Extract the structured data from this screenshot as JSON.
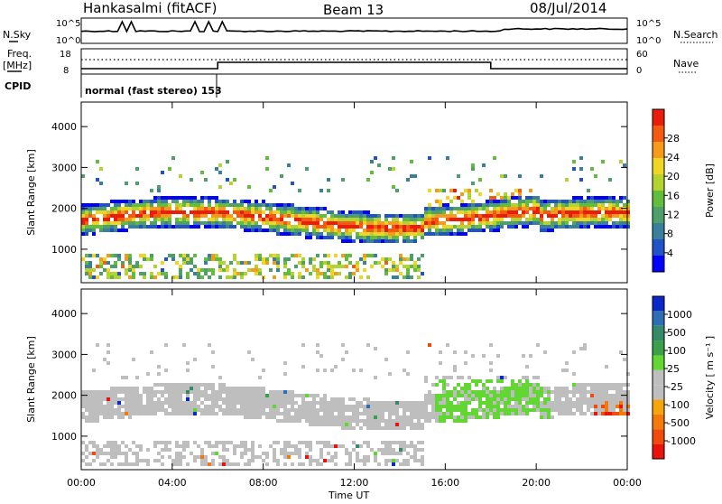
{
  "header": {
    "station": "Hankasalmi (fitACF)",
    "beam": "Beam 13",
    "date": "08/Jul/2014"
  },
  "panels": {
    "sky": {
      "left_label": "N.Sky",
      "right_label": "N.Search",
      "left_ticks": [
        "10^5",
        "10^0"
      ],
      "right_ticks": [
        "10^5",
        "10^0"
      ]
    },
    "freq": {
      "left_label_1": "Freq.",
      "left_label_2": "[MHz]",
      "right_label": "Nave",
      "left_ticks": [
        "18",
        "8"
      ],
      "right_ticks": [
        "60",
        "0"
      ]
    },
    "cpid": {
      "label": "CPID",
      "text": "normal (fast stereo) 153"
    }
  },
  "chart_data": [
    {
      "type": "heatmap",
      "title": "",
      "ylabel": "Slant Range [km]",
      "xlabel": "",
      "x_ticks": [
        "00:00",
        "04:00",
        "08:00",
        "12:00",
        "16:00",
        "20:00",
        "00:00"
      ],
      "xlim_hours": [
        0,
        24
      ],
      "y_ticks": [
        1000,
        2000,
        3000,
        4000
      ],
      "ylim": [
        180,
        4600
      ],
      "colorbar": {
        "label": "Power [dB]",
        "ticks": [
          "4",
          "8",
          "12",
          "16",
          "20",
          "24",
          "28"
        ],
        "colors": [
          "#0000ff",
          "#2152c8",
          "#3a7f9b",
          "#4e9f6a",
          "#62bd3d",
          "#b4d230",
          "#f0d624",
          "#f59a1a",
          "#f35a12",
          "#ea1c0c"
        ]
      }
    },
    {
      "type": "heatmap",
      "title": "",
      "ylabel": "Slant Range [km]",
      "xlabel": "Time UT",
      "x_ticks": [
        "00:00",
        "04:00",
        "08:00",
        "12:00",
        "16:00",
        "20:00",
        "00:00"
      ],
      "xlim_hours": [
        0,
        24
      ],
      "y_ticks": [
        1000,
        2000,
        3000,
        4000
      ],
      "ylim": [
        180,
        4600
      ],
      "colorbar": {
        "label": "Velocity [ m s⁻¹ ]",
        "ticks": [
          "1000",
          "500",
          "100",
          "25",
          "-25",
          "-100",
          "-500",
          "-1000"
        ],
        "colors": [
          "#0a28c8",
          "#2e6eb4",
          "#358a6a",
          "#3aa04a",
          "#62d632",
          "#bebebe",
          "#bebebe",
          "#f5a60a",
          "#f57a0c",
          "#f04a0c",
          "#e8140a"
        ]
      }
    }
  ]
}
